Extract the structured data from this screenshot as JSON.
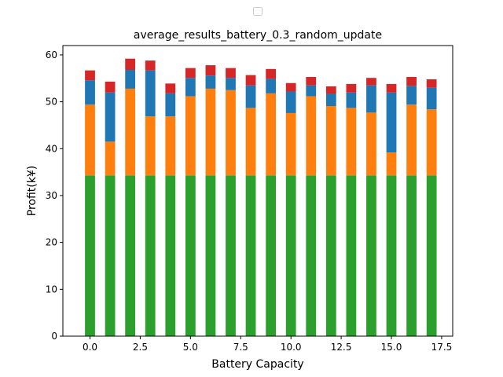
{
  "chart_data": {
    "type": "bar",
    "stacked": true,
    "title": "average_results_battery_0.3_random_update",
    "xlabel": "Battery Capacity",
    "ylabel": "Profit(k¥)",
    "xlim": [
      -1.35,
      18.05
    ],
    "ylim": [
      0,
      62
    ],
    "x": [
      0,
      1,
      2,
      3,
      4,
      5,
      6,
      7,
      8,
      9,
      10,
      11,
      12,
      13,
      14,
      15,
      16,
      17
    ],
    "x_ticks": [
      0.0,
      2.5,
      5.0,
      7.5,
      10.0,
      12.5,
      15.0,
      17.5
    ],
    "x_tick_labels": [
      "0.0",
      "2.5",
      "5.0",
      "7.5",
      "10.0",
      "12.5",
      "15.0",
      "17.5"
    ],
    "y_ticks": [
      0,
      10,
      20,
      30,
      40,
      50,
      60
    ],
    "y_tick_labels": [
      "0",
      "10",
      "20",
      "30",
      "40",
      "50",
      "60"
    ],
    "legend": {
      "placement": "upper center",
      "entries": []
    },
    "series": [
      {
        "color": "#2ca02c",
        "values": [
          34.3,
          34.3,
          34.3,
          34.3,
          34.3,
          34.3,
          34.3,
          34.3,
          34.3,
          34.3,
          34.3,
          34.3,
          34.3,
          34.3,
          34.3,
          34.3,
          34.3,
          34.3
        ]
      },
      {
        "color": "#ff7f0e",
        "values": [
          15.1,
          7.2,
          18.5,
          12.6,
          12.6,
          16.9,
          18.5,
          18.2,
          14.4,
          17.5,
          13.3,
          16.9,
          14.8,
          14.4,
          13.4,
          4.9,
          15.1,
          14.1
        ]
      },
      {
        "color": "#1f77b4",
        "values": [
          5.2,
          10.5,
          4.0,
          9.8,
          4.9,
          3.9,
          2.8,
          2.6,
          4.8,
          3.1,
          4.6,
          2.3,
          2.6,
          3.3,
          5.8,
          12.8,
          4.0,
          4.6
        ]
      },
      {
        "color": "#d62728",
        "values": [
          2.1,
          2.3,
          2.4,
          2.1,
          2.1,
          2.1,
          2.2,
          2.1,
          2.2,
          2.1,
          1.8,
          1.8,
          1.6,
          1.8,
          1.6,
          1.8,
          1.9,
          1.8
        ]
      }
    ]
  }
}
